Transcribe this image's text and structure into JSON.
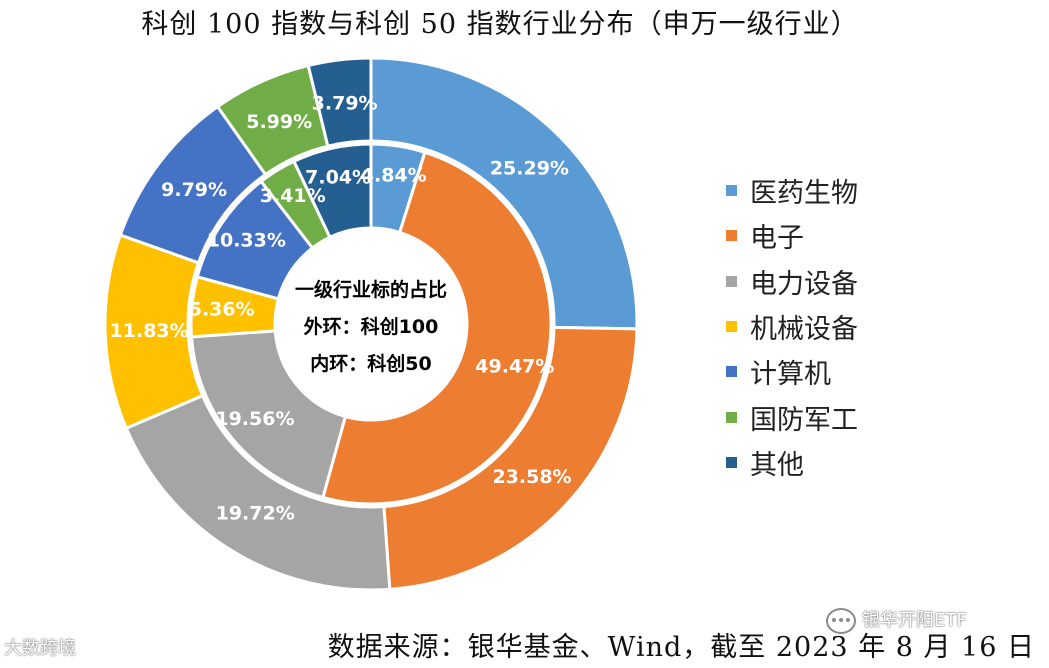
{
  "chart_data": {
    "type": "donut",
    "title": "科创 100 指数与科创 50 指数行业分布（申万一级行业）",
    "center_label": [
      "一级行业标的占比",
      "外环：科创100",
      "内环：科创50"
    ],
    "categories": [
      "医药生物",
      "电子",
      "电力设备",
      "机械设备",
      "计算机",
      "国防军工",
      "其他"
    ],
    "colors": [
      "#5B9BD5",
      "#ED7D31",
      "#A5A5A5",
      "#FFC000",
      "#4472C4",
      "#70AD47",
      "#255E91"
    ],
    "series": [
      {
        "ring": "outer",
        "index": "科创100",
        "values": [
          25.29,
          23.58,
          19.72,
          11.83,
          9.79,
          5.99,
          3.79
        ],
        "labels": [
          "25.29%",
          "23.58%",
          "19.72%",
          "11.83%",
          "9.79%",
          "5.99%",
          "3.79%"
        ]
      },
      {
        "ring": "inner",
        "index": "科创50",
        "values": [
          4.84,
          49.47,
          19.56,
          5.36,
          10.33,
          3.41,
          7.04
        ],
        "labels": [
          "4.84%",
          "49.47%",
          "19.56%",
          "5.36%",
          "10.33%",
          "3.41%",
          "7.04%"
        ]
      }
    ],
    "legend_position": "right"
  },
  "source": "数据来源：银华基金、Wind，截至 2023 年 8 月 16 日",
  "watermarks": [
    "大数跨境",
    "银华开阳ETF"
  ]
}
